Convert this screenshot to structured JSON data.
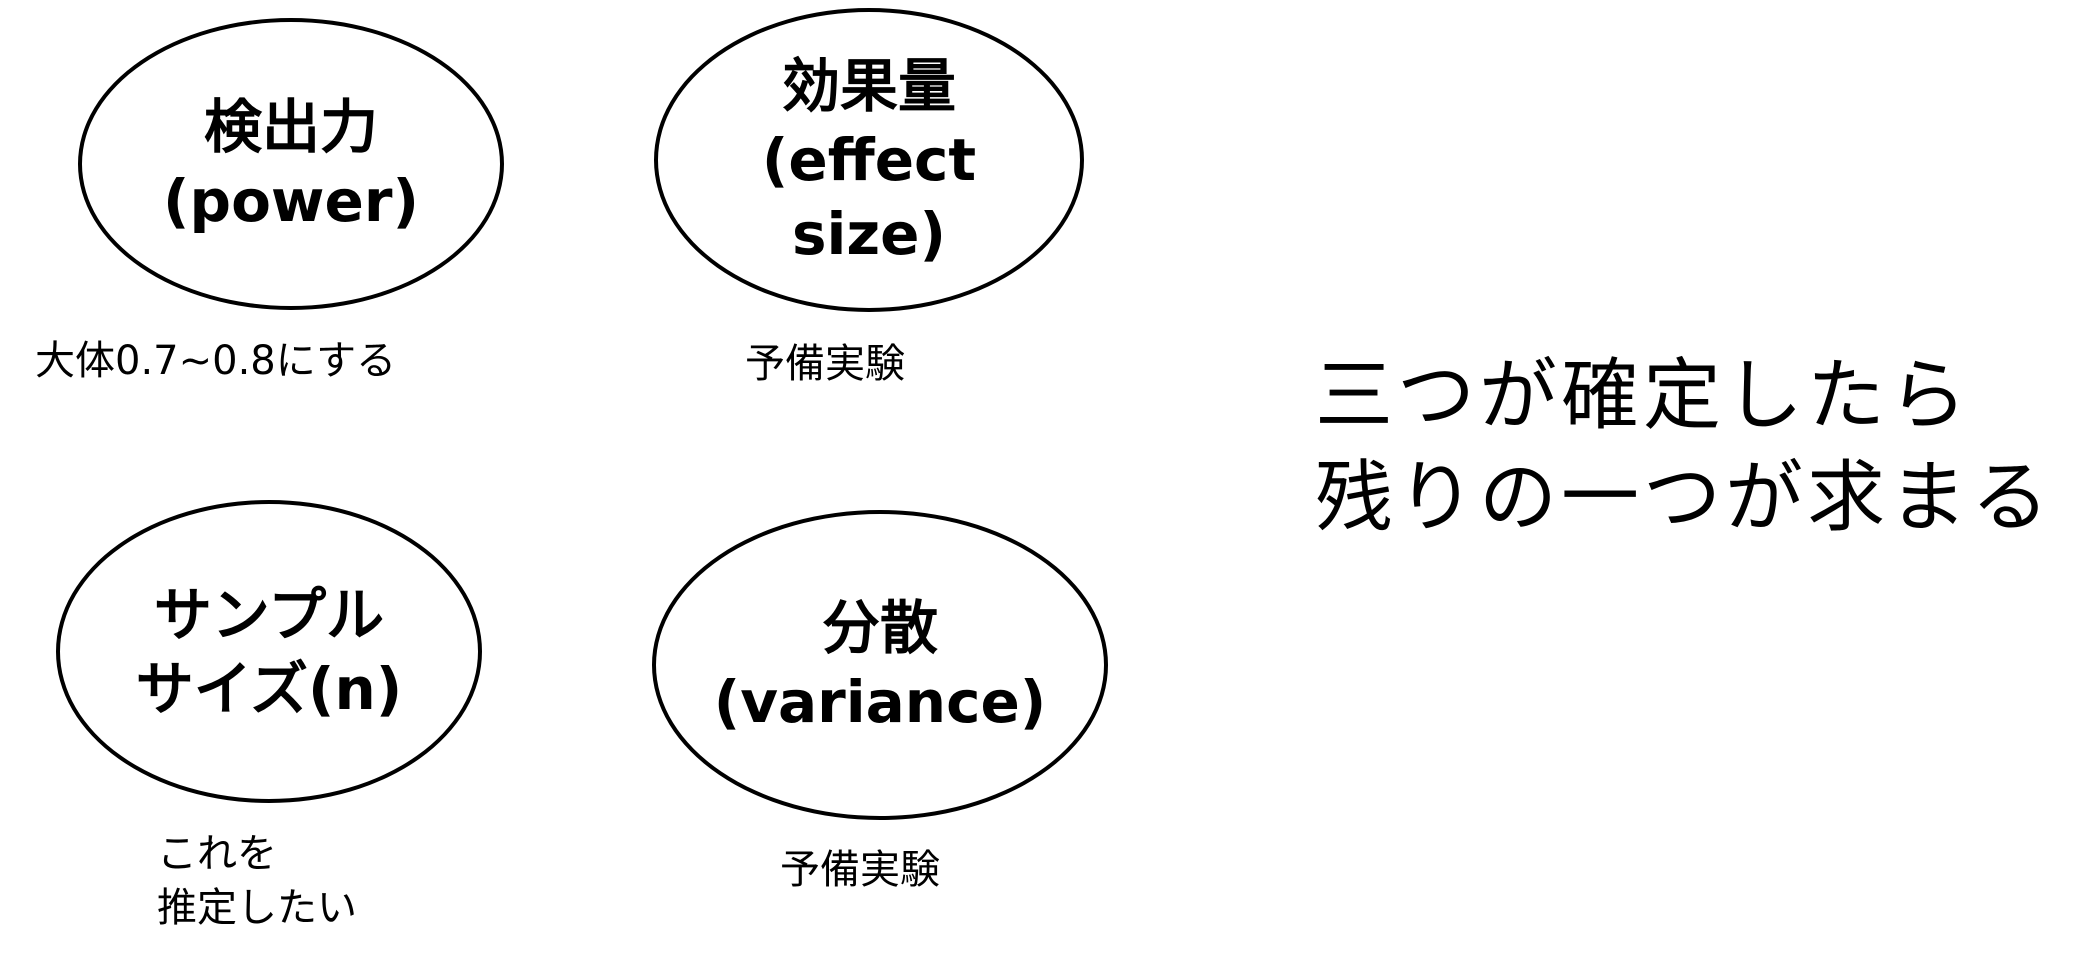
{
  "nodes": [
    {
      "id": "power",
      "label": "検出力\n(power)",
      "note": "大体0.7~0.8にする"
    },
    {
      "id": "effect_size",
      "label": "効果量\n(effect\nsize)",
      "note": "予備実験"
    },
    {
      "id": "sample_size",
      "label": "サンプル\nサイズ(n)",
      "note": "これを\n推定したい"
    },
    {
      "id": "variance",
      "label": "分散\n(variance)",
      "note": "予備実験"
    }
  ],
  "statement": "三つが確定したら\n残りの一つが求まる"
}
